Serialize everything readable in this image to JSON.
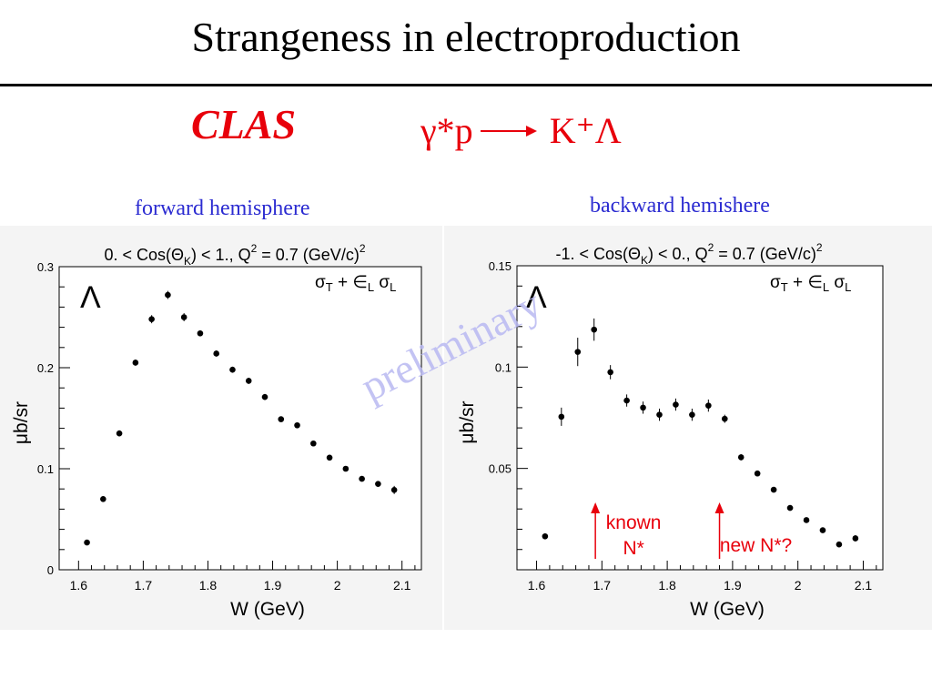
{
  "slide": {
    "title": "Strangeness in electroproduction",
    "experiment": "CLAS",
    "reaction_lhs": "γ*p",
    "reaction_rhs": "K⁺Λ",
    "forward_label": "forward hemisphere",
    "backward_label": "backward hemishere",
    "watermark": "preliminary",
    "colors": {
      "red": "#e8000b",
      "blue": "#2b2bd1",
      "watermark": "#b9b9f2"
    }
  },
  "chart_data": [
    {
      "type": "scatter",
      "title": "0. < Cos(Θ_K) < 1.,  Q² = 0.7 (GeV/c)²",
      "title_parts": {
        "pre": "0. < Cos(Θ",
        "sub": "K",
        "mid": ") < 1.,  Q",
        "sup": "2",
        "post": " = 0.7 (GeV/c)",
        "sup2": "2"
      },
      "particle_label": "Λ",
      "legend": {
        "t1": "σ",
        "s1": "T",
        "t2": " + ∈",
        "s2": "L",
        "t3": " σ",
        "s3": "L"
      },
      "xlabel": "W (GeV)",
      "ylabel": "μb/sr",
      "xlim": [
        1.57,
        2.13
      ],
      "ylim": [
        0,
        0.3
      ],
      "x_ticks": [
        1.6,
        1.7,
        1.8,
        1.9,
        2.0,
        2.1
      ],
      "x_tick_labels": [
        "1.6",
        "1.7",
        "1.8",
        "1.9",
        "2",
        "2.1"
      ],
      "y_ticks": [
        0,
        0.1,
        0.2,
        0.3
      ],
      "y_tick_labels": [
        "0",
        "0.1",
        "0.2",
        "0.3"
      ],
      "x": [
        1.613,
        1.638,
        1.663,
        1.688,
        1.713,
        1.738,
        1.763,
        1.788,
        1.813,
        1.838,
        1.863,
        1.888,
        1.913,
        1.938,
        1.963,
        1.988,
        2.013,
        2.038,
        2.063,
        2.088
      ],
      "y": [
        0.027,
        0.07,
        0.135,
        0.205,
        0.248,
        0.272,
        0.25,
        0.234,
        0.214,
        0.198,
        0.187,
        0.171,
        0.149,
        0.143,
        0.125,
        0.111,
        0.1,
        0.09,
        0.085,
        0.079
      ],
      "yerr": [
        0.002,
        0.002,
        0.003,
        0.003,
        0.004,
        0.004,
        0.004,
        0.003,
        0.003,
        0.003,
        0.003,
        0.003,
        0.002,
        0.002,
        0.002,
        0.002,
        0.002,
        0.002,
        0.002,
        0.004
      ],
      "annotations": []
    },
    {
      "type": "scatter",
      "title": "-1. < Cos(Θ_K) < 0.,  Q² = 0.7 (GeV/c)²",
      "title_parts": {
        "pre": "-1. < Cos(Θ",
        "sub": "K",
        "mid": ") < 0.,  Q",
        "sup": "2",
        "post": " = 0.7 (GeV/c)",
        "sup2": "2"
      },
      "particle_label": "Λ",
      "legend": {
        "t1": "σ",
        "s1": "T",
        "t2": " + ∈",
        "s2": "L",
        "t3": " σ",
        "s3": "L"
      },
      "xlabel": "W (GeV)",
      "ylabel": "μb/sr",
      "xlim": [
        1.57,
        2.13
      ],
      "ylim": [
        0.0,
        0.15
      ],
      "x_ticks": [
        1.6,
        1.7,
        1.8,
        1.9,
        2.0,
        2.1
      ],
      "x_tick_labels": [
        "1.6",
        "1.7",
        "1.8",
        "1.9",
        "2",
        "2.1"
      ],
      "y_ticks": [
        0.05,
        0.1,
        0.15
      ],
      "y_tick_labels": [
        "0.05",
        "0.1",
        "0.15"
      ],
      "x": [
        1.613,
        1.638,
        1.663,
        1.688,
        1.713,
        1.738,
        1.763,
        1.788,
        1.813,
        1.838,
        1.863,
        1.888,
        1.913,
        1.938,
        1.963,
        1.988,
        2.013,
        2.038,
        2.063,
        2.088
      ],
      "y": [
        0.0165,
        0.0755,
        0.1075,
        0.1185,
        0.0975,
        0.0835,
        0.08,
        0.0765,
        0.0815,
        0.0765,
        0.081,
        0.0745,
        0.0555,
        0.0475,
        0.0395,
        0.0305,
        0.0245,
        0.0195,
        0.0125,
        0.0155
      ],
      "yerr": [
        0.0015,
        0.0045,
        0.007,
        0.0055,
        0.0035,
        0.003,
        0.003,
        0.003,
        0.003,
        0.003,
        0.003,
        0.002,
        0.0015,
        0.0012,
        0.0012,
        0.0012,
        0.001,
        0.001,
        0.001,
        0.0015
      ],
      "annotations": [
        {
          "label_lines": [
            "known",
            "N*"
          ],
          "x": 1.69
        },
        {
          "label_lines": [
            "new N*?"
          ],
          "x": 1.88
        }
      ]
    }
  ]
}
